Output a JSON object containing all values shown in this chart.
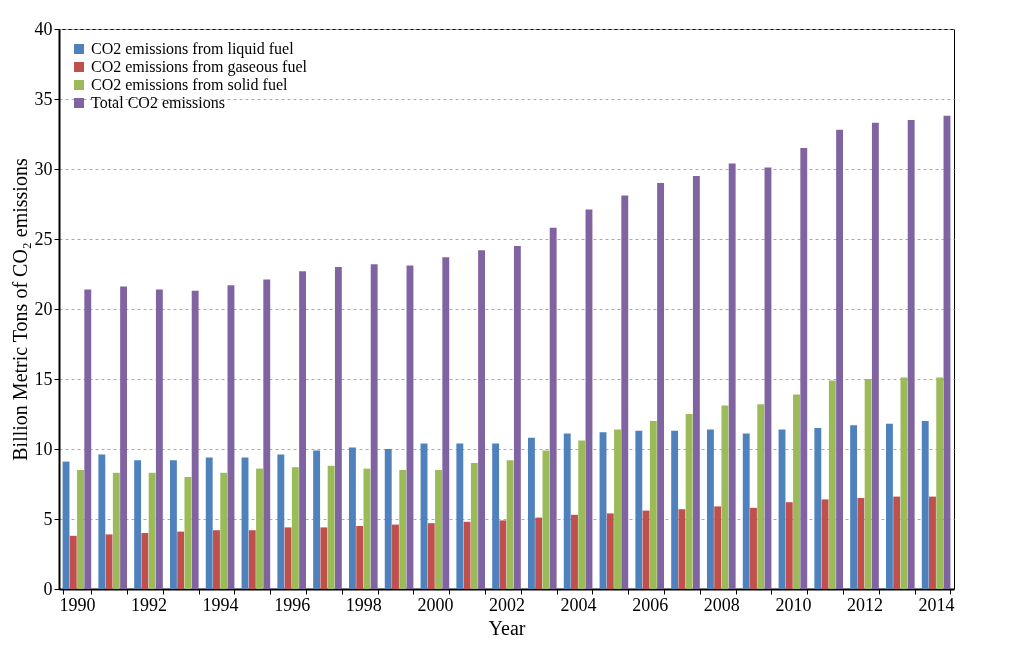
{
  "chart_data": {
    "type": "bar",
    "xlabel": "Year",
    "ylabel": "Billion Metric Tons of CO₂ emissions",
    "categories": [
      "1990",
      null,
      "1992",
      null,
      "1994",
      null,
      "1996",
      null,
      "1998",
      null,
      "2000",
      null,
      "2002",
      null,
      "2004",
      null,
      "2006",
      null,
      "2008",
      null,
      "2010",
      null,
      "2012",
      null,
      "2014"
    ],
    "series": [
      {
        "name": "CO2 emissions from liquid fuel",
        "color": "#4f81bd",
        "values": [
          9.1,
          9.6,
          9.2,
          9.2,
          9.4,
          9.4,
          9.6,
          9.9,
          10.1,
          10.0,
          10.4,
          10.4,
          10.4,
          10.8,
          11.1,
          11.2,
          11.3,
          11.3,
          11.4,
          11.1,
          11.4,
          11.5,
          11.7,
          11.8,
          12.0
        ]
      },
      {
        "name": "CO2 emissions from gaseous fuel",
        "color": "#c0504d",
        "values": [
          3.8,
          3.9,
          4.0,
          4.1,
          4.2,
          4.2,
          4.4,
          4.4,
          4.5,
          4.6,
          4.7,
          4.8,
          4.9,
          5.1,
          5.3,
          5.4,
          5.6,
          5.7,
          5.9,
          5.8,
          6.2,
          6.4,
          6.5,
          6.6,
          6.6
        ]
      },
      {
        "name": "CO2 emissions from solid fuel",
        "color": "#9bbb59",
        "values": [
          8.5,
          8.3,
          8.3,
          8.0,
          8.3,
          8.6,
          8.7,
          8.8,
          8.6,
          8.5,
          8.5,
          9.0,
          9.2,
          9.9,
          10.6,
          11.4,
          12.0,
          12.5,
          13.1,
          13.2,
          13.9,
          14.9,
          15.0,
          15.1,
          15.1
        ]
      },
      {
        "name": "Total CO2 emissions",
        "color": "#8064a2",
        "values": [
          21.4,
          21.6,
          21.4,
          21.3,
          21.7,
          22.1,
          22.7,
          23.0,
          23.2,
          23.1,
          23.7,
          24.2,
          24.5,
          25.8,
          27.1,
          28.1,
          29.0,
          29.5,
          30.4,
          30.1,
          31.5,
          32.8,
          33.3,
          33.5,
          33.8
        ]
      }
    ],
    "ylim": [
      0,
      40
    ],
    "yticks": [
      0,
      5,
      10,
      15,
      20,
      25,
      30,
      35,
      40
    ],
    "grid": "y",
    "legend": "top left"
  }
}
